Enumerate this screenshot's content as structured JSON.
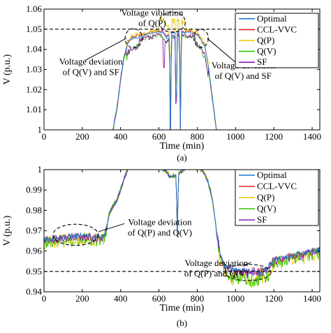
{
  "chart_data": [
    {
      "type": "line",
      "caption": "(a)",
      "xlabel": "Time (min)",
      "ylabel": "V (p.u.)",
      "xlim": [
        0,
        1440
      ],
      "ylim": [
        1.0,
        1.06
      ],
      "xticks": [
        0,
        200,
        400,
        600,
        800,
        1000,
        1200,
        1400
      ],
      "yticks": [
        1,
        1.01,
        1.02,
        1.03,
        1.04,
        1.05,
        1.06
      ],
      "ytick_labels": [
        "1",
        "1.01",
        "1.02",
        "1.03",
        "1.04",
        "1.05",
        "1.06"
      ],
      "grid": false,
      "legend_position": "top-right",
      "limit_line": {
        "y": 1.05,
        "style": "dashed"
      },
      "series": [
        {
          "name": "Optimal",
          "color": "#1f77d4"
        },
        {
          "name": "CCL-VVC",
          "color": "#e8202a"
        },
        {
          "name": "Q(P)",
          "color": "#e6c800"
        },
        {
          "name": "Q(V)",
          "color": "#2fc400"
        },
        {
          "name": "SF",
          "color": "#8a1ea8"
        }
      ],
      "base_profile": [
        [
          0,
          0.995
        ],
        [
          340,
          0.995
        ],
        [
          360,
          1.0
        ],
        [
          380,
          1.01
        ],
        [
          400,
          1.025
        ],
        [
          420,
          1.037
        ],
        [
          440,
          1.043
        ],
        [
          460,
          1.045
        ],
        [
          500,
          1.046
        ],
        [
          540,
          1.047
        ],
        [
          580,
          1.048
        ],
        [
          620,
          1.048
        ],
        [
          640,
          1.045
        ],
        [
          660,
          1.047
        ],
        [
          700,
          1.048
        ],
        [
          760,
          1.048
        ],
        [
          800,
          1.047
        ],
        [
          820,
          1.044
        ],
        [
          840,
          1.041
        ],
        [
          860,
          1.03
        ],
        [
          880,
          1.015
        ],
        [
          900,
          1.0
        ],
        [
          920,
          0.995
        ],
        [
          1440,
          0.995
        ]
      ],
      "annotations": [
        {
          "lines": [
            "Voltage violation",
            "of Q(P)"
          ],
          "x": 565,
          "y": 1.0567
        },
        {
          "lines": [
            "Voltage deviation",
            "of Q(V) and SF"
          ],
          "x": 245,
          "y": 1.0325
        },
        {
          "lines": [
            "Voltage deviation",
            "of Q(V) and SF"
          ],
          "x": 1040,
          "y": 1.0305
        }
      ],
      "ellipses": [
        {
          "cx": 468,
          "cy": 1.0455,
          "rx": 45,
          "ry": 0.0048
        },
        {
          "cx": 670,
          "cy": 1.0535,
          "rx": 68,
          "ry": 0.005
        },
        {
          "cx": 820,
          "cy": 1.0455,
          "rx": 38,
          "ry": 0.0045
        }
      ]
    },
    {
      "type": "line",
      "caption": "(b)",
      "xlabel": "Time (min)",
      "ylabel": "V (p.u.)",
      "xlim": [
        0,
        1440
      ],
      "ylim": [
        0.94,
        1.0
      ],
      "xticks": [
        0,
        200,
        400,
        600,
        800,
        1000,
        1200,
        1400
      ],
      "yticks": [
        0.94,
        0.95,
        0.96,
        0.97,
        0.98,
        0.99,
        1.0
      ],
      "ytick_labels": [
        "0.94",
        "0.95",
        "0.96",
        "0.97",
        "0.98",
        "0.99",
        "1"
      ],
      "grid": false,
      "legend_position": "top-right",
      "limit_line": {
        "y": 0.95,
        "style": "dashed"
      },
      "series": [
        {
          "name": "Optimal",
          "color": "#1f77d4"
        },
        {
          "name": "CCL-VVC",
          "color": "#e8202a"
        },
        {
          "name": "Q(P)",
          "color": "#e6c800"
        },
        {
          "name": "Q(V)",
          "color": "#2fc400"
        },
        {
          "name": "SF",
          "color": "#8a1ea8"
        }
      ],
      "base_profile": [
        [
          0,
          0.965
        ],
        [
          100,
          0.966
        ],
        [
          200,
          0.967
        ],
        [
          300,
          0.966
        ],
        [
          320,
          0.968
        ],
        [
          340,
          0.978
        ],
        [
          360,
          0.982
        ],
        [
          380,
          0.985
        ],
        [
          400,
          0.99
        ],
        [
          420,
          0.996
        ],
        [
          440,
          1.001
        ],
        [
          500,
          1.002
        ],
        [
          600,
          1.002
        ],
        [
          640,
          0.999
        ],
        [
          660,
          0.996
        ],
        [
          700,
          0.998
        ],
        [
          760,
          1.002
        ],
        [
          800,
          1.002
        ],
        [
          840,
          0.998
        ],
        [
          860,
          0.993
        ],
        [
          880,
          0.985
        ],
        [
          900,
          0.97
        ],
        [
          920,
          0.958
        ],
        [
          940,
          0.952
        ],
        [
          1000,
          0.95
        ],
        [
          1100,
          0.9495
        ],
        [
          1160,
          0.95
        ],
        [
          1200,
          0.955
        ],
        [
          1300,
          0.957
        ],
        [
          1440,
          0.96
        ]
      ],
      "annotations": [
        {
          "lines": [
            "Voltage deviation",
            "of Q(P) and Q(V)"
          ],
          "x": 605,
          "y": 0.9727
        },
        {
          "lines": [
            "Voltage deviation",
            "of Q(P) and Q(V)"
          ],
          "x": 900,
          "y": 0.9527
        }
      ],
      "ellipses": [
        {
          "cx": 165,
          "cy": 0.968,
          "rx": 118,
          "ry": 0.0052
        },
        {
          "cx": 1065,
          "cy": 0.9495,
          "rx": 120,
          "ry": 0.004
        }
      ]
    }
  ]
}
